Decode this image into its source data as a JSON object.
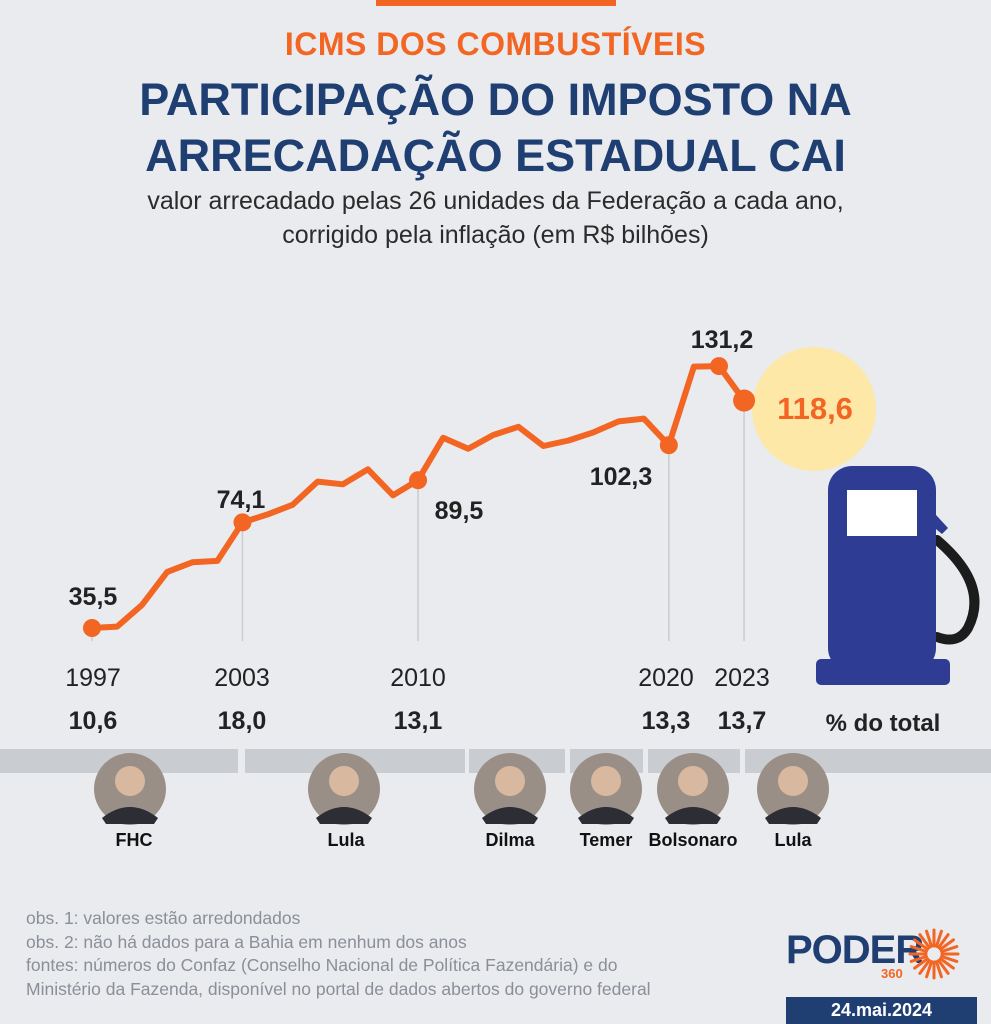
{
  "header": {
    "kicker": "ICMS DOS COMBUSTÍVEIS",
    "title_line1": "PARTICIPAÇÃO DO IMPOSTO NA",
    "title_line2": "ARRECADAÇÃO ESTADUAL CAI",
    "subtitle_line1": "valor arrecadado pelas 26 unidades da Federação a cada ano,",
    "subtitle_line2": "corrigido pela inflação (em R$ bilhões)"
  },
  "chart_data": {
    "type": "line",
    "x": [
      1997,
      1998,
      1999,
      2000,
      2001,
      2002,
      2003,
      2004,
      2005,
      2006,
      2007,
      2008,
      2009,
      2010,
      2011,
      2012,
      2013,
      2014,
      2015,
      2016,
      2017,
      2018,
      2019,
      2020,
      2021,
      2022,
      2023
    ],
    "series": [
      {
        "values": [
          35.5,
          36.0,
          44.0,
          56.0,
          59.5,
          60.0,
          74.1,
          77.0,
          80.5,
          89.0,
          88.0,
          93.5,
          84.0,
          89.5,
          105.0,
          101.0,
          106.0,
          109.0,
          102.0,
          104.0,
          107.0,
          111.0,
          112.0,
          102.3,
          131.0,
          131.2,
          118.6
        ]
      }
    ],
    "labeled_points": [
      {
        "x": 1997,
        "label": "35,5"
      },
      {
        "x": 2003,
        "label": "74,1"
      },
      {
        "x": 2010,
        "label": "89,5"
      },
      {
        "x": 2020,
        "label": "102,3"
      },
      {
        "x": 2022,
        "label": "131,2"
      },
      {
        "x": 2023,
        "label": "118,6"
      }
    ],
    "x_ticks": [
      "1997",
      "2003",
      "2010",
      "2020",
      "2023"
    ],
    "share_values": [
      "10,6",
      "18,0",
      "13,1",
      "13,3",
      "13,7"
    ],
    "share_label": "% do total",
    "line_color": "#f26522",
    "highlight_color": "#fde8a8",
    "pump_color": "#2e3c94"
  },
  "presidents": [
    {
      "name": "FHC"
    },
    {
      "name": "Lula"
    },
    {
      "name": "Dilma"
    },
    {
      "name": "Temer"
    },
    {
      "name": "Bolsonaro"
    },
    {
      "name": "Lula"
    }
  ],
  "footnotes": [
    "obs. 1: valores estão arredondados",
    "obs. 2: não há dados para a Bahia em nenhum dos anos",
    "fontes: números do Confaz (Conselho Nacional de Política Fazendária) e do",
    "Ministério da Fazenda, disponível no portal de dados abertos do governo federal"
  ],
  "brand": {
    "word": "PODER",
    "number": "360",
    "date": "24.mai.2024"
  }
}
